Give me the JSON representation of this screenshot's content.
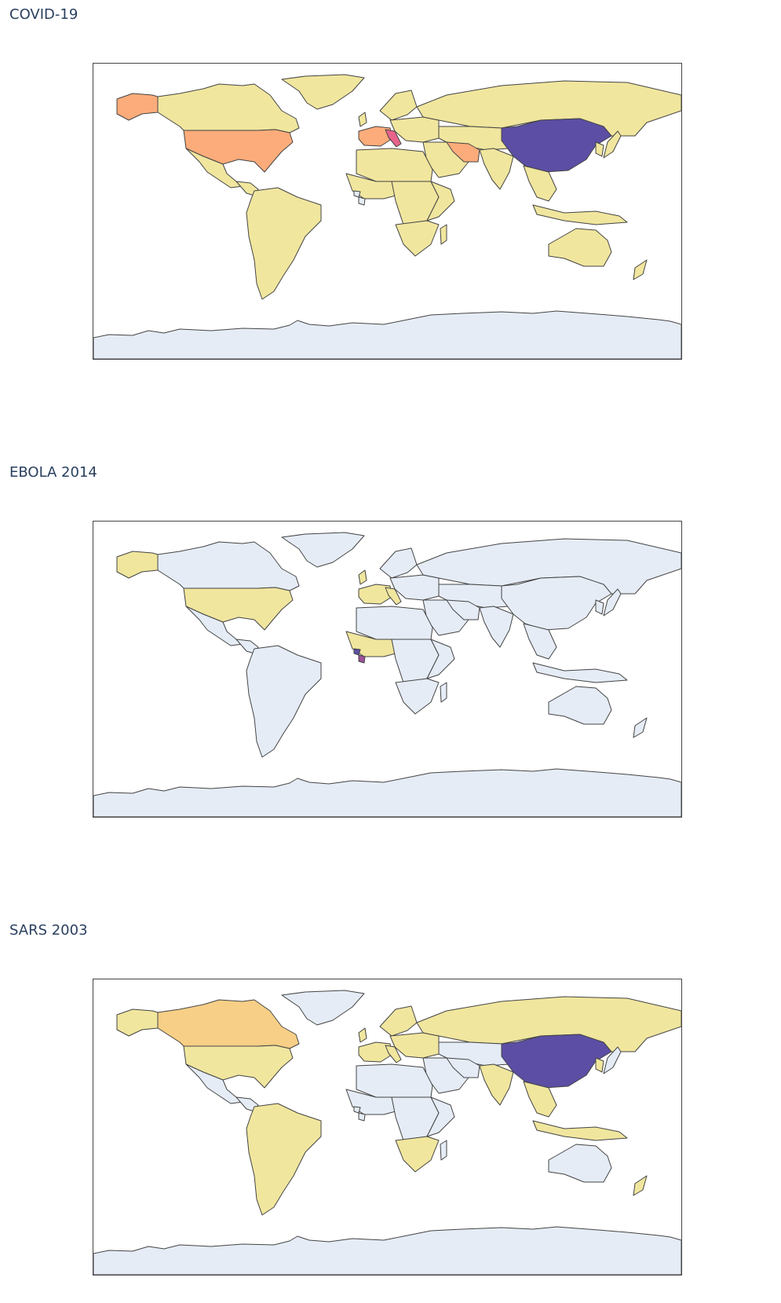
{
  "colors": {
    "no_data": "#e5ecf6",
    "low": "#f0e69e",
    "low_mid": "#f7cf86",
    "mid": "#fcac7a",
    "mid_high": "#e8638a",
    "high": "#a05199",
    "max": "#5c4ea4"
  },
  "maps": [
    {
      "title": "COVID-19",
      "regions": {
        "alaska": "mid",
        "canada": "low",
        "usa": "mid",
        "mexico": "low",
        "central_america": "low",
        "south_america": "low",
        "greenland": "low",
        "uk": "low",
        "western_europe": "mid",
        "italy": "mid_high",
        "eastern_europe": "low",
        "scandinavia": "low",
        "russia": "low",
        "middle_east": "low",
        "iran": "mid",
        "north_africa": "low",
        "west_africa": "low",
        "central_africa": "low",
        "east_africa": "low",
        "southern_africa": "low",
        "madagascar": "low",
        "central_asia": "low",
        "india": "low",
        "china": "max",
        "southeast_asia": "low",
        "indonesia": "low",
        "japan": "low",
        "korea": "low",
        "australia": "low",
        "new_zealand": "low",
        "antarctica": "no_data"
      }
    },
    {
      "title": "EBOLA 2014",
      "regions": {
        "alaska": "low",
        "canada": "no_data",
        "usa": "low",
        "mexico": "no_data",
        "central_america": "no_data",
        "south_america": "no_data",
        "greenland": "no_data",
        "uk": "low",
        "western_europe": "low",
        "italy": "low",
        "eastern_europe": "no_data",
        "scandinavia": "no_data",
        "russia": "no_data",
        "middle_east": "no_data",
        "iran": "no_data",
        "north_africa": "no_data",
        "west_africa": "low",
        "liberia": "high",
        "sierra_leone": "max",
        "central_africa": "no_data",
        "east_africa": "no_data",
        "southern_africa": "no_data",
        "madagascar": "no_data",
        "central_asia": "no_data",
        "india": "no_data",
        "china": "no_data",
        "southeast_asia": "no_data",
        "indonesia": "no_data",
        "japan": "no_data",
        "korea": "no_data",
        "australia": "no_data",
        "new_zealand": "no_data",
        "antarctica": "no_data"
      }
    },
    {
      "title": "SARS 2003",
      "regions": {
        "alaska": "low",
        "canada": "low_mid",
        "usa": "low",
        "mexico": "no_data",
        "central_america": "no_data",
        "south_america": "low",
        "greenland": "no_data",
        "uk": "low",
        "western_europe": "low",
        "italy": "low",
        "eastern_europe": "low",
        "scandinavia": "low",
        "russia": "low",
        "middle_east": "no_data",
        "iran": "no_data",
        "north_africa": "no_data",
        "west_africa": "no_data",
        "central_africa": "no_data",
        "east_africa": "no_data",
        "southern_africa": "low",
        "madagascar": "no_data",
        "central_asia": "no_data",
        "india": "low",
        "china": "max",
        "southeast_asia": "low",
        "indonesia": "low",
        "japan": "no_data",
        "korea": "low",
        "australia": "no_data",
        "new_zealand": "low",
        "antarctica": "no_data"
      }
    }
  ]
}
